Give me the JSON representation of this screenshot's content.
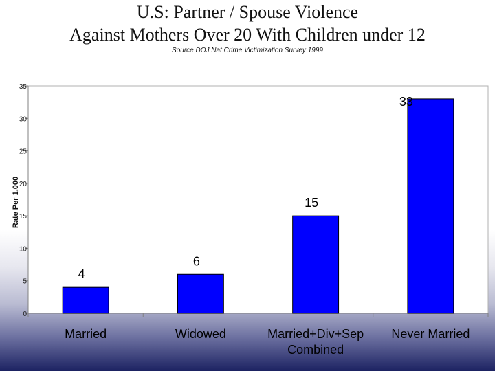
{
  "chart_data": {
    "type": "bar",
    "title": [
      "U.S: Partner / Spouse Violence",
      "Against Mothers Over 20 With Children under 12"
    ],
    "subtitle": "Source DOJ Nat Crime Victimization Survey 1999",
    "ylabel": "Rate Per 1,000",
    "xlabel": "",
    "ylim": [
      0,
      35
    ],
    "yticks": [
      0,
      5,
      10,
      15,
      20,
      25,
      30,
      35
    ],
    "grid": false,
    "categories": [
      [
        "Married"
      ],
      [
        "Widowed"
      ],
      [
        "Married+Div+Sep",
        "Combined"
      ],
      [
        "Never Married"
      ]
    ],
    "values": [
      4,
      6,
      15,
      33
    ],
    "data_labels": [
      "4",
      "6",
      "15",
      "33"
    ],
    "bar_color": "#0000ff",
    "plot_background": "#ffffff"
  }
}
